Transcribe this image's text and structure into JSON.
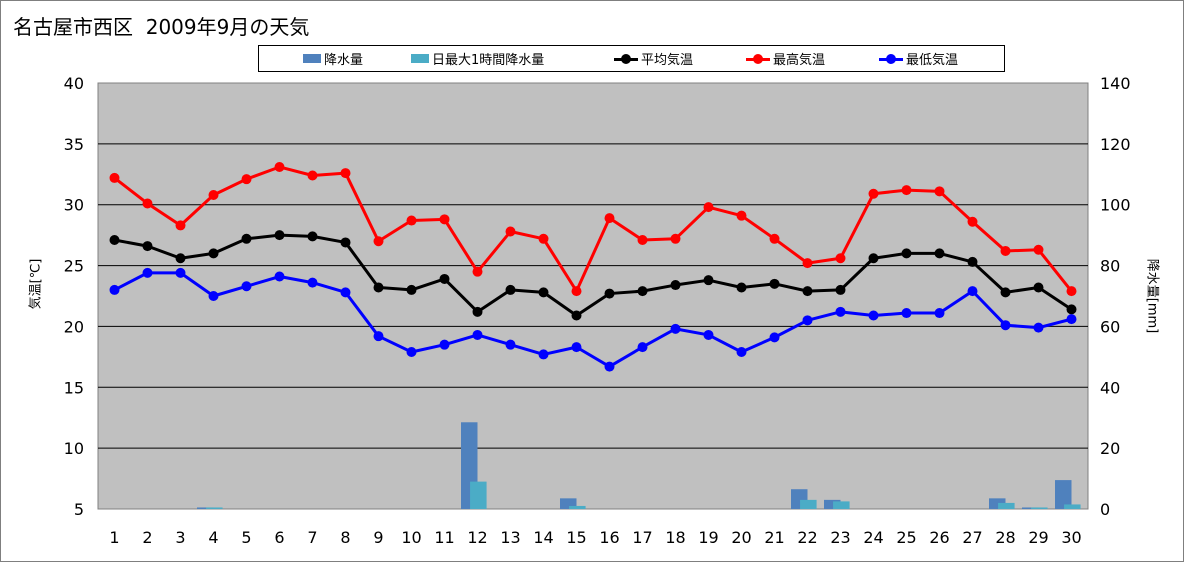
{
  "title": "名古屋市西区  2009年9月の天気",
  "chart_data": {
    "type": "bar+line",
    "title": "名古屋市西区  2009年9月の天気",
    "categories": [
      "1",
      "2",
      "3",
      "4",
      "5",
      "6",
      "7",
      "8",
      "9",
      "10",
      "11",
      "12",
      "13",
      "14",
      "15",
      "16",
      "17",
      "18",
      "19",
      "20",
      "21",
      "22",
      "23",
      "24",
      "25",
      "26",
      "27",
      "28",
      "29",
      "30"
    ],
    "y_left": {
      "label": "気温[℃]",
      "range": [
        5,
        40
      ],
      "ticks": [
        5,
        10,
        15,
        20,
        25,
        30,
        35,
        40
      ]
    },
    "y_right": {
      "label": "降水量[mm]",
      "range": [
        0,
        140
      ],
      "ticks": [
        0,
        20,
        40,
        60,
        80,
        100,
        120,
        140
      ]
    },
    "grid": true,
    "legend_position": "top",
    "series": [
      {
        "name": "降水量",
        "kind": "bar",
        "axis": "right",
        "color": "#4f81bd",
        "values": [
          0,
          0,
          0,
          0.5,
          0,
          0,
          0,
          0,
          0,
          0,
          0,
          28.5,
          0,
          0,
          3.5,
          0,
          0,
          0,
          0,
          0,
          0,
          6.5,
          3,
          0,
          0,
          0,
          0,
          3.5,
          0.5,
          9.5
        ]
      },
      {
        "name": "日最大1時間降水量",
        "kind": "bar",
        "axis": "right",
        "color": "#4bacc6",
        "values": [
          0,
          0,
          0,
          0.5,
          0,
          0,
          0,
          0,
          0,
          0,
          0,
          9,
          0,
          0,
          1,
          0,
          0,
          0,
          0,
          0,
          0,
          3,
          2.5,
          0,
          0,
          0,
          0,
          2,
          0.5,
          1.5
        ]
      },
      {
        "name": "平均気温",
        "kind": "line",
        "axis": "left",
        "color": "#000000",
        "values": [
          27.1,
          26.6,
          25.6,
          26.0,
          27.2,
          27.5,
          27.4,
          26.9,
          23.2,
          23.0,
          23.9,
          21.2,
          23.0,
          22.8,
          20.9,
          22.7,
          22.9,
          23.4,
          23.8,
          23.2,
          23.5,
          22.9,
          23.0,
          25.6,
          26.0,
          26.0,
          25.3,
          22.8,
          23.2,
          21.4
        ]
      },
      {
        "name": "最高気温",
        "kind": "line",
        "axis": "left",
        "color": "#ff0000",
        "values": [
          32.2,
          30.1,
          28.3,
          30.8,
          32.1,
          33.1,
          32.4,
          32.6,
          27.0,
          28.7,
          28.8,
          24.5,
          27.8,
          27.2,
          22.9,
          28.9,
          27.1,
          27.2,
          29.8,
          29.1,
          27.2,
          25.2,
          25.6,
          30.9,
          31.2,
          31.1,
          28.6,
          26.2,
          26.3,
          22.9
        ]
      },
      {
        "name": "最低気温",
        "kind": "line",
        "axis": "left",
        "color": "#0000ff",
        "values": [
          23.0,
          24.4,
          24.4,
          22.5,
          23.3,
          24.1,
          23.6,
          22.8,
          19.2,
          17.9,
          18.5,
          19.3,
          18.5,
          17.7,
          18.3,
          16.7,
          18.3,
          19.8,
          19.3,
          17.9,
          19.1,
          20.5,
          21.2,
          20.9,
          21.1,
          21.1,
          22.9,
          20.1,
          19.9,
          20.6
        ]
      }
    ]
  }
}
